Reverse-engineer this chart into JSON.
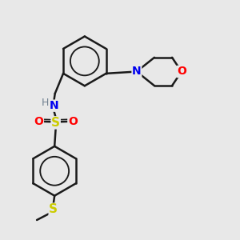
{
  "background_color": "#e8e8e8",
  "line_color": "#1a1a1a",
  "bond_width": 1.8,
  "atom_colors": {
    "N": "#0000ee",
    "O": "#ff0000",
    "S_sulfonamide": "#cccc00",
    "S_thioether": "#cccc00",
    "H": "#708090",
    "C": "#1a1a1a"
  },
  "font_size": 10,
  "fig_size": [
    3.0,
    3.0
  ],
  "dpi": 100
}
